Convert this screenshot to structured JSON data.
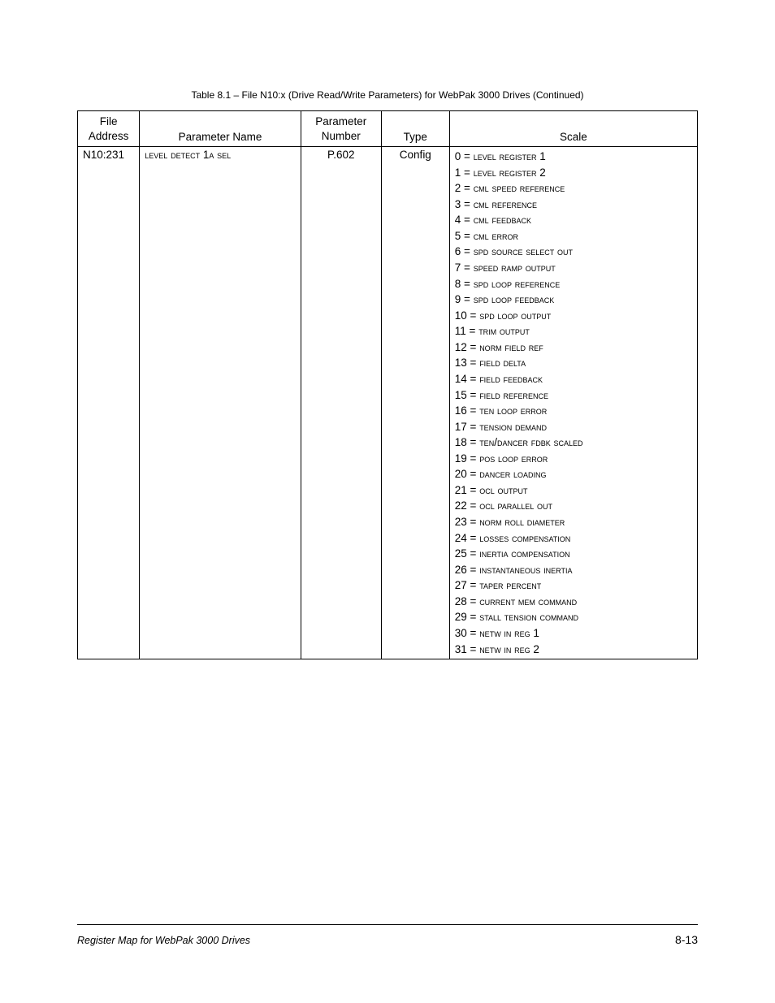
{
  "caption": "Table 8.1 – File N10:x (Drive Read/Write Parameters) for WebPak 3000 Drives (Continued)",
  "headers": {
    "file_address_l1": "File",
    "file_address_l2": "Address",
    "param_name": "Parameter Name",
    "param_num_l1": "Parameter",
    "param_num_l2": "Number",
    "type": "Type",
    "scale": "Scale"
  },
  "row": {
    "address": "N10:231",
    "name": "level detect 1a sel",
    "number": "P.602",
    "type": "Config",
    "scale": [
      {
        "n": "0",
        "label": "level register 1"
      },
      {
        "n": "1",
        "label": "level register 2"
      },
      {
        "n": "2",
        "label": "cml speed reference"
      },
      {
        "n": "3",
        "label": "cml reference"
      },
      {
        "n": "4",
        "label": "cml feedback"
      },
      {
        "n": "5",
        "label": "cml error"
      },
      {
        "n": "6",
        "label": "spd source select out"
      },
      {
        "n": "7",
        "label": "speed ramp output"
      },
      {
        "n": "8",
        "label": "spd loop reference"
      },
      {
        "n": "9",
        "label": "spd loop feedback"
      },
      {
        "n": "10",
        "label": "spd loop output"
      },
      {
        "n": "11",
        "label": "trim output"
      },
      {
        "n": "12",
        "label": "norm field ref"
      },
      {
        "n": "13",
        "label": "field delta"
      },
      {
        "n": "14",
        "label": "field feedback"
      },
      {
        "n": "15",
        "label": "field reference"
      },
      {
        "n": "16",
        "label": "ten loop error"
      },
      {
        "n": "17",
        "label": "tension demand"
      },
      {
        "n": "18",
        "label": "ten/dancer fdbk scaled"
      },
      {
        "n": "19",
        "label": "pos loop error"
      },
      {
        "n": "20",
        "label": "dancer loading"
      },
      {
        "n": "21",
        "label": "ocl output"
      },
      {
        "n": "22",
        "label": "ocl parallel out"
      },
      {
        "n": "23",
        "label": "norm roll diameter"
      },
      {
        "n": "24",
        "label": "losses compensation"
      },
      {
        "n": "25",
        "label": "inertia compensation"
      },
      {
        "n": "26",
        "label": "instantaneous inertia"
      },
      {
        "n": "27",
        "label": "taper percent"
      },
      {
        "n": "28",
        "label": "current mem command"
      },
      {
        "n": "29",
        "label": "stall tension command"
      },
      {
        "n": "30",
        "label": "netw in reg 1"
      },
      {
        "n": "31",
        "label": "netw in reg 2"
      }
    ]
  },
  "footer": {
    "left": "Register Map for WebPak 3000 Drives",
    "right": "8-13"
  }
}
